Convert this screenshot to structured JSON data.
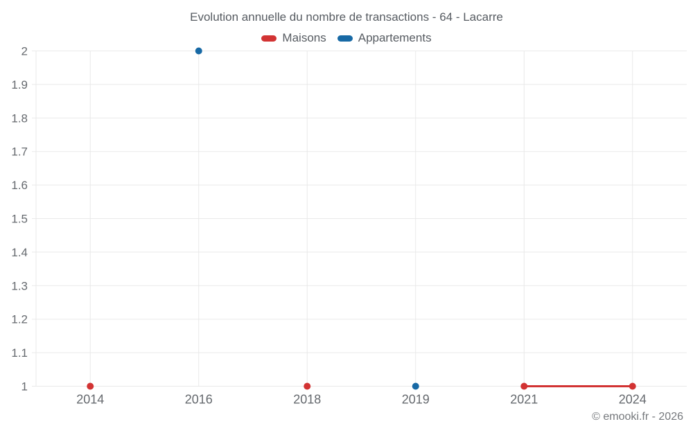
{
  "chart": {
    "title": "Evolution annuelle du nombre de transactions - 64 - Lacarre",
    "copyright": "© emooki.fr - 2026"
  },
  "chart_data": {
    "type": "line",
    "title": "Evolution annuelle du nombre de transactions - 64 - Lacarre",
    "categories": [
      "2014",
      "2016",
      "2018",
      "2019",
      "2021",
      "2024"
    ],
    "series": [
      {
        "name": "Maisons",
        "color": "#d23333",
        "values": [
          1,
          null,
          1,
          null,
          1,
          1
        ]
      },
      {
        "name": "Appartements",
        "color": "#1769a5",
        "values": [
          null,
          2,
          null,
          1,
          null,
          null
        ]
      }
    ],
    "xlabel": "",
    "ylabel": "",
    "ylim": [
      1,
      2
    ],
    "ytick_step": 0.1,
    "ytick_labels": [
      "1",
      "1.1",
      "1.2",
      "1.3",
      "1.4",
      "1.5",
      "1.6",
      "1.7",
      "1.8",
      "1.9",
      "2"
    ],
    "grid": true,
    "legend_position": "top",
    "gap_policy": "no line across missing years; only consecutive non-null points are connected (2021-2024 for Maisons)"
  },
  "colors": {
    "maisons": "#d23333",
    "appartements": "#1769a5",
    "gridline": "#e9e9e9",
    "axis_text": "#65696e",
    "title_text": "#565b61",
    "copyright_text": "#75787c",
    "background": "#ffffff"
  }
}
